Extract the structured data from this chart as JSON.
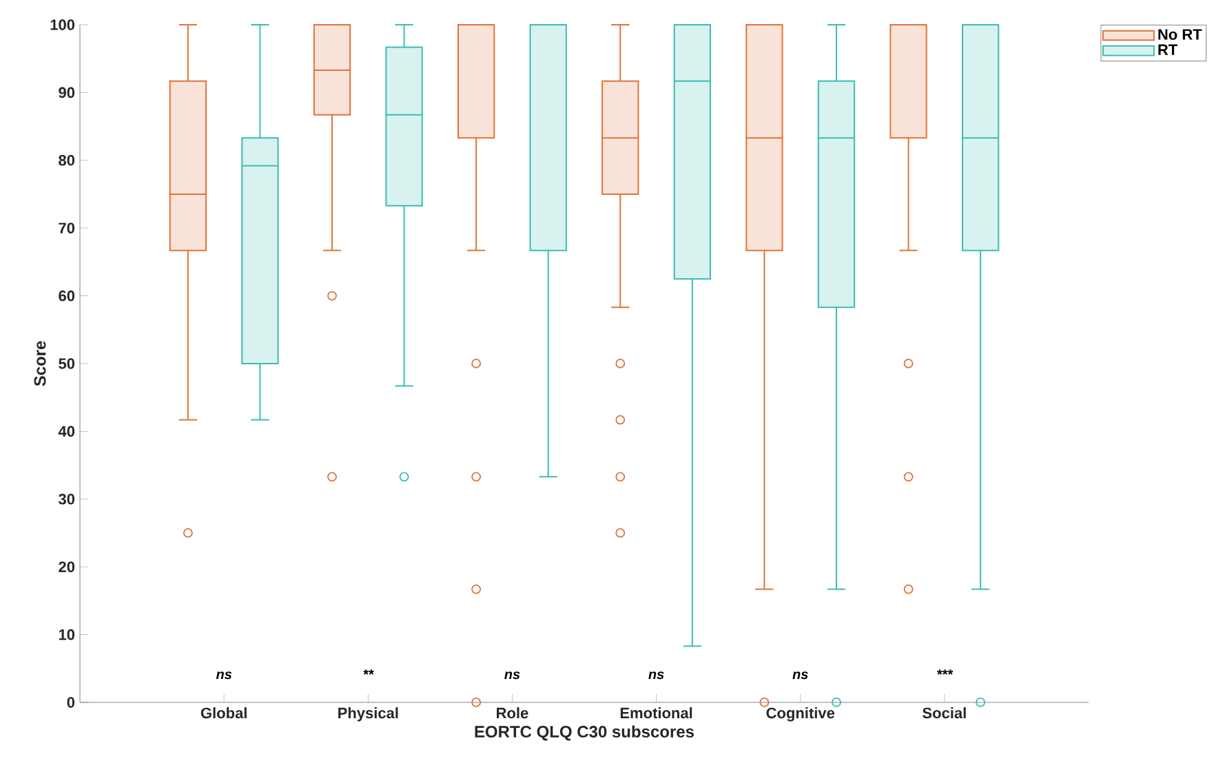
{
  "chart_data": {
    "type": "box",
    "xlabel": "EORTC QLQ C30 subscores",
    "ylabel": "Score",
    "categories": [
      "Global",
      "Physical",
      "Role",
      "Emotional",
      "Cognitive",
      "Social"
    ],
    "ylim": [
      0,
      100
    ],
    "yticks": [
      0,
      10,
      20,
      30,
      40,
      50,
      60,
      70,
      80,
      90,
      100
    ],
    "legend": "top right",
    "marker": "circle",
    "series": [
      {
        "name": "No RT",
        "color": "#e0733a",
        "boxes": [
          {
            "low": 41.7,
            "q1": 66.7,
            "median": 75,
            "q3": 91.7,
            "high": 100,
            "outliers": [
              25
            ]
          },
          {
            "low": 66.7,
            "q1": 86.7,
            "median": 93.3,
            "q3": 100,
            "high": 100,
            "outliers": [
              60,
              33.3
            ]
          },
          {
            "low": 66.7,
            "q1": 83.3,
            "median": 100,
            "q3": 100,
            "high": 100,
            "outliers": [
              50,
              33.3,
              16.7,
              0
            ]
          },
          {
            "low": 58.3,
            "q1": 75,
            "median": 83.3,
            "q3": 91.7,
            "high": 100,
            "outliers": [
              50,
              41.7,
              33.3,
              25
            ]
          },
          {
            "low": 16.7,
            "q1": 66.7,
            "median": 83.3,
            "q3": 100,
            "high": 100,
            "outliers": [
              0
            ]
          },
          {
            "low": 66.7,
            "q1": 83.3,
            "median": 100,
            "q3": 100,
            "high": 100,
            "outliers": [
              50,
              33.3,
              16.7
            ]
          }
        ]
      },
      {
        "name": "RT",
        "color": "#3cbcb4",
        "boxes": [
          {
            "low": 41.7,
            "q1": 50,
            "median": 79.2,
            "q3": 83.3,
            "high": 100
          },
          {
            "low": 46.7,
            "q1": 73.3,
            "median": 86.7,
            "q3": 96.7,
            "high": 100,
            "outliers": [
              33.3
            ]
          },
          {
            "low": 33.3,
            "q1": 66.7,
            "median": 100,
            "q3": 100,
            "high": 100
          },
          {
            "low": 8.3,
            "q1": 62.5,
            "median": 91.7,
            "q3": 100,
            "high": 100
          },
          {
            "low": 16.7,
            "q1": 58.3,
            "median": 83.3,
            "q3": 91.7,
            "high": 100,
            "outliers": [
              0
            ]
          },
          {
            "low": 16.7,
            "q1": 66.7,
            "median": 83.3,
            "q3": 100,
            "high": 100,
            "outliers": [
              0
            ]
          }
        ]
      }
    ],
    "annotations": [
      "ns",
      "**",
      "ns",
      "ns",
      "ns",
      "***"
    ]
  }
}
